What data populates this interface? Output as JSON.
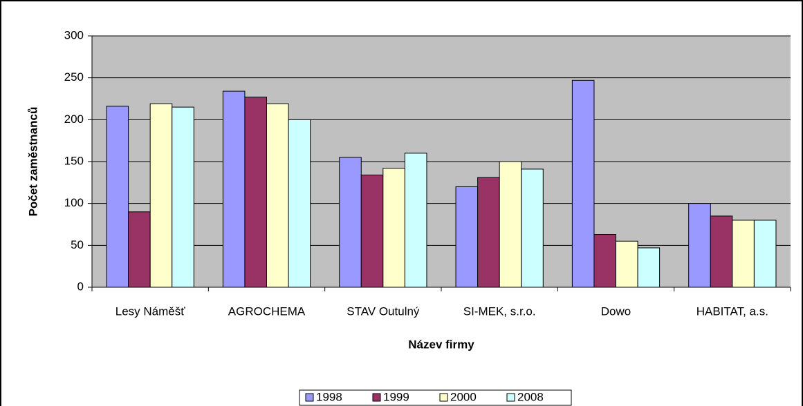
{
  "chart_data": {
    "type": "bar",
    "x_label": "Název firmy",
    "y_label": "Počet zaměstnanců",
    "categories": [
      "Lesy Náměšť",
      "AGROCHEMA",
      "STAV Outulný",
      "SI-MEK, s.r.o.",
      "Dowo",
      "HABITAT, a.s."
    ],
    "series": [
      {
        "name": "1998",
        "color": "#9999ff",
        "values": [
          216,
          234,
          155,
          120,
          247,
          100
        ]
      },
      {
        "name": "1999",
        "color": "#993366",
        "values": [
          90,
          227,
          134,
          131,
          63,
          85
        ]
      },
      {
        "name": "2000",
        "color": "#ffffcc",
        "values": [
          219,
          219,
          142,
          150,
          55,
          80
        ]
      },
      {
        "name": "2008",
        "color": "#ccffff",
        "values": [
          215,
          200,
          160,
          141,
          47,
          80
        ]
      }
    ],
    "ylim": [
      0,
      300
    ],
    "yticks": [
      0,
      50,
      100,
      150,
      200,
      250,
      300
    ],
    "grid": true,
    "legend": "bottom"
  }
}
